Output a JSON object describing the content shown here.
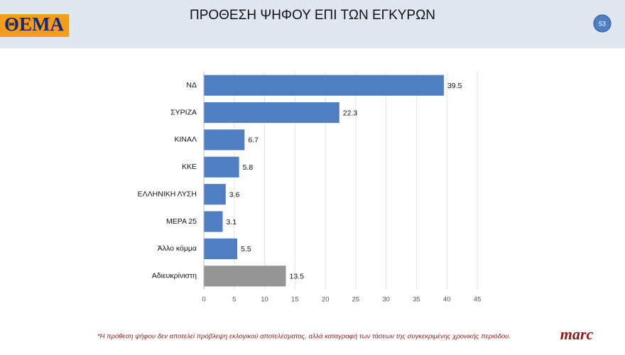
{
  "header": {
    "logo": "ΘΕΜΑ",
    "page_number": "53"
  },
  "chart_data": {
    "type": "bar",
    "orientation": "horizontal",
    "title": "ΠΡΟΘΕΣΗ ΨΗΦΟΥ ΕΠΙ ΤΩΝ ΕΓΚΥΡΩΝ",
    "categories": [
      "ΝΔ",
      "ΣΥΡΙΖΑ",
      "ΚΙΝΑΛ",
      "ΚΚΕ",
      "ΕΛΛΗΝΙΚΗ ΛΥΣΗ",
      "ΜΕΡΑ 25",
      "Άλλο κόμμα",
      "Αδιευκρίνιστη"
    ],
    "values": [
      39.5,
      22.3,
      6.7,
      5.8,
      3.6,
      3.1,
      5.5,
      13.5
    ],
    "colors": [
      "#4f7fc0",
      "#4f7fc0",
      "#4f7fc0",
      "#4f7fc0",
      "#4f7fc0",
      "#4f7fc0",
      "#4f7fc0",
      "#959595"
    ],
    "xlim": [
      0,
      45
    ],
    "xticks": [
      0,
      5,
      10,
      15,
      20,
      25,
      30,
      35,
      40,
      45
    ],
    "grid": true
  },
  "footer": {
    "note": "*Η πρόθεση ψήφου δεν αποτελεί πρόβλεψη εκλογικού αποτελέσματος, αλλά καταγραφή των τάσεων της συγκεκριμένης χρονικής περιόδου.",
    "brand": "marc"
  }
}
